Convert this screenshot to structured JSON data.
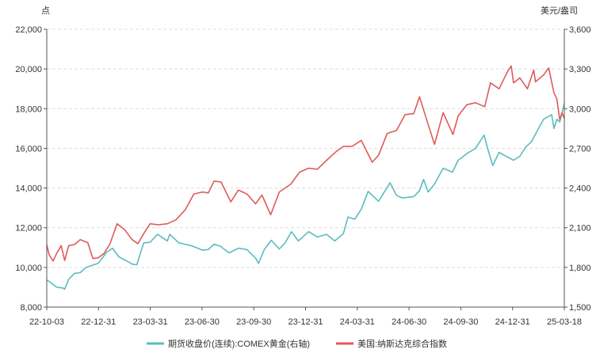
{
  "chart_data": {
    "type": "line",
    "left_unit": "点",
    "right_unit": "美元/盎司",
    "left_axis": {
      "min": 8000,
      "max": 22000,
      "ticks": [
        "8,000",
        "10,000",
        "12,000",
        "14,000",
        "16,000",
        "18,000",
        "20,000",
        "22,000"
      ]
    },
    "right_axis": {
      "min": 1500,
      "max": 3600,
      "ticks": [
        "1,500",
        "1,800",
        "2,100",
        "2,400",
        "2,700",
        "3,000",
        "3,300",
        "3,600"
      ]
    },
    "x_ticks": [
      "22-10-03",
      "22-12-31",
      "23-03-31",
      "23-06-30",
      "23-09-30",
      "23-12-31",
      "24-03-31",
      "24-06-30",
      "24-09-30",
      "24-12-31",
      "25-03-18"
    ],
    "x_range": [
      "2022-10-03",
      "2025-03-18"
    ],
    "grid": "horizontal dashed",
    "legend_position": "bottom",
    "colors": {
      "gold": "#5bbcc0",
      "nasdaq": "#e05a5a"
    },
    "series": [
      {
        "name": "期货收盘价(连续):COMEX黄金(右轴)",
        "axis": "right",
        "color": "#5bbcc0",
        "points": [
          [
            "2022-10-03",
            1705
          ],
          [
            "2022-10-10",
            1685
          ],
          [
            "2022-10-20",
            1650
          ],
          [
            "2022-10-31",
            1645
          ],
          [
            "2022-11-03",
            1635
          ],
          [
            "2022-11-10",
            1710
          ],
          [
            "2022-11-20",
            1755
          ],
          [
            "2022-11-30",
            1760
          ],
          [
            "2022-12-10",
            1800
          ],
          [
            "2022-12-20",
            1815
          ],
          [
            "2022-12-31",
            1830
          ],
          [
            "2023-01-15",
            1915
          ],
          [
            "2023-01-25",
            1945
          ],
          [
            "2023-02-05",
            1880
          ],
          [
            "2023-02-20",
            1845
          ],
          [
            "2023-02-28",
            1825
          ],
          [
            "2023-03-08",
            1820
          ],
          [
            "2023-03-20",
            1985
          ],
          [
            "2023-03-31",
            1990
          ],
          [
            "2023-04-13",
            2050
          ],
          [
            "2023-04-30",
            2000
          ],
          [
            "2023-05-04",
            2050
          ],
          [
            "2023-05-20",
            1985
          ],
          [
            "2023-05-31",
            1975
          ],
          [
            "2023-06-10",
            1965
          ],
          [
            "2023-06-30",
            1930
          ],
          [
            "2023-07-10",
            1935
          ],
          [
            "2023-07-20",
            1975
          ],
          [
            "2023-07-31",
            1960
          ],
          [
            "2023-08-15",
            1910
          ],
          [
            "2023-08-31",
            1945
          ],
          [
            "2023-09-15",
            1935
          ],
          [
            "2023-09-30",
            1870
          ],
          [
            "2023-10-05",
            1830
          ],
          [
            "2023-10-15",
            1935
          ],
          [
            "2023-10-27",
            2005
          ],
          [
            "2023-11-10",
            1940
          ],
          [
            "2023-11-20",
            1985
          ],
          [
            "2023-12-01",
            2070
          ],
          [
            "2023-12-13",
            2000
          ],
          [
            "2023-12-31",
            2070
          ],
          [
            "2024-01-15",
            2030
          ],
          [
            "2024-01-31",
            2050
          ],
          [
            "2024-02-14",
            2000
          ],
          [
            "2024-02-29",
            2055
          ],
          [
            "2024-03-08",
            2180
          ],
          [
            "2024-03-20",
            2165
          ],
          [
            "2024-03-31",
            2240
          ],
          [
            "2024-04-12",
            2375
          ],
          [
            "2024-04-30",
            2300
          ],
          [
            "2024-05-20",
            2440
          ],
          [
            "2024-05-31",
            2345
          ],
          [
            "2024-06-10",
            2325
          ],
          [
            "2024-06-30",
            2335
          ],
          [
            "2024-07-10",
            2380
          ],
          [
            "2024-07-17",
            2465
          ],
          [
            "2024-07-25",
            2370
          ],
          [
            "2024-08-05",
            2430
          ],
          [
            "2024-08-20",
            2550
          ],
          [
            "2024-09-05",
            2520
          ],
          [
            "2024-09-15",
            2610
          ],
          [
            "2024-09-30",
            2660
          ],
          [
            "2024-10-15",
            2700
          ],
          [
            "2024-10-30",
            2800
          ],
          [
            "2024-11-05",
            2700
          ],
          [
            "2024-11-14",
            2570
          ],
          [
            "2024-11-25",
            2670
          ],
          [
            "2024-12-05",
            2645
          ],
          [
            "2024-12-20",
            2610
          ],
          [
            "2024-12-31",
            2640
          ],
          [
            "2025-01-10",
            2710
          ],
          [
            "2025-01-20",
            2750
          ],
          [
            "2025-01-31",
            2840
          ],
          [
            "2025-02-10",
            2920
          ],
          [
            "2025-02-24",
            2955
          ],
          [
            "2025-02-28",
            2850
          ],
          [
            "2025-03-05",
            2920
          ],
          [
            "2025-03-10",
            2900
          ],
          [
            "2025-03-18",
            3040
          ]
        ]
      },
      {
        "name": "美国:纳斯达克综合指数",
        "axis": "left",
        "color": "#e05a5a",
        "points": [
          [
            "2022-10-03",
            11150
          ],
          [
            "2022-10-07",
            10650
          ],
          [
            "2022-10-14",
            10320
          ],
          [
            "2022-10-20",
            10700
          ],
          [
            "2022-10-28",
            11100
          ],
          [
            "2022-11-03",
            10350
          ],
          [
            "2022-11-10",
            11100
          ],
          [
            "2022-11-20",
            11150
          ],
          [
            "2022-11-30",
            11400
          ],
          [
            "2022-12-13",
            11250
          ],
          [
            "2022-12-22",
            10450
          ],
          [
            "2022-12-31",
            10480
          ],
          [
            "2023-01-10",
            10700
          ],
          [
            "2023-01-20",
            11150
          ],
          [
            "2023-02-02",
            12200
          ],
          [
            "2023-02-15",
            11900
          ],
          [
            "2023-02-28",
            11400
          ],
          [
            "2023-03-10",
            11200
          ],
          [
            "2023-03-20",
            11700
          ],
          [
            "2023-03-31",
            12200
          ],
          [
            "2023-04-15",
            12150
          ],
          [
            "2023-04-30",
            12200
          ],
          [
            "2023-05-15",
            12400
          ],
          [
            "2023-05-31",
            12900
          ],
          [
            "2023-06-15",
            13700
          ],
          [
            "2023-06-30",
            13800
          ],
          [
            "2023-07-10",
            13750
          ],
          [
            "2023-07-20",
            14350
          ],
          [
            "2023-08-01",
            14300
          ],
          [
            "2023-08-18",
            13300
          ],
          [
            "2023-08-31",
            13900
          ],
          [
            "2023-09-15",
            13700
          ],
          [
            "2023-09-30",
            13200
          ],
          [
            "2023-10-11",
            13650
          ],
          [
            "2023-10-26",
            12650
          ],
          [
            "2023-11-10",
            13800
          ],
          [
            "2023-11-30",
            14200
          ],
          [
            "2023-12-15",
            14800
          ],
          [
            "2023-12-31",
            15000
          ],
          [
            "2024-01-15",
            14950
          ],
          [
            "2024-01-31",
            15400
          ],
          [
            "2024-02-15",
            15800
          ],
          [
            "2024-02-29",
            16100
          ],
          [
            "2024-03-15",
            16100
          ],
          [
            "2024-03-31",
            16400
          ],
          [
            "2024-04-19",
            15300
          ],
          [
            "2024-04-30",
            15650
          ],
          [
            "2024-05-15",
            16750
          ],
          [
            "2024-05-31",
            16900
          ],
          [
            "2024-06-15",
            17700
          ],
          [
            "2024-06-30",
            17750
          ],
          [
            "2024-07-10",
            18600
          ],
          [
            "2024-07-25",
            17200
          ],
          [
            "2024-08-05",
            16200
          ],
          [
            "2024-08-20",
            17800
          ],
          [
            "2024-09-06",
            16700
          ],
          [
            "2024-09-15",
            17650
          ],
          [
            "2024-09-30",
            18200
          ],
          [
            "2024-10-15",
            18300
          ],
          [
            "2024-10-31",
            18100
          ],
          [
            "2024-11-10",
            19300
          ],
          [
            "2024-11-25",
            19000
          ],
          [
            "2024-12-10",
            19900
          ],
          [
            "2024-12-16",
            20150
          ],
          [
            "2024-12-20",
            19300
          ],
          [
            "2024-12-31",
            19550
          ],
          [
            "2025-01-13",
            19000
          ],
          [
            "2025-01-24",
            19950
          ],
          [
            "2025-01-27",
            19350
          ],
          [
            "2025-02-10",
            19700
          ],
          [
            "2025-02-19",
            20050
          ],
          [
            "2025-02-28",
            18800
          ],
          [
            "2025-03-05",
            18500
          ],
          [
            "2025-03-10",
            17450
          ],
          [
            "2025-03-14",
            17800
          ],
          [
            "2025-03-18",
            17500
          ]
        ]
      }
    ]
  }
}
